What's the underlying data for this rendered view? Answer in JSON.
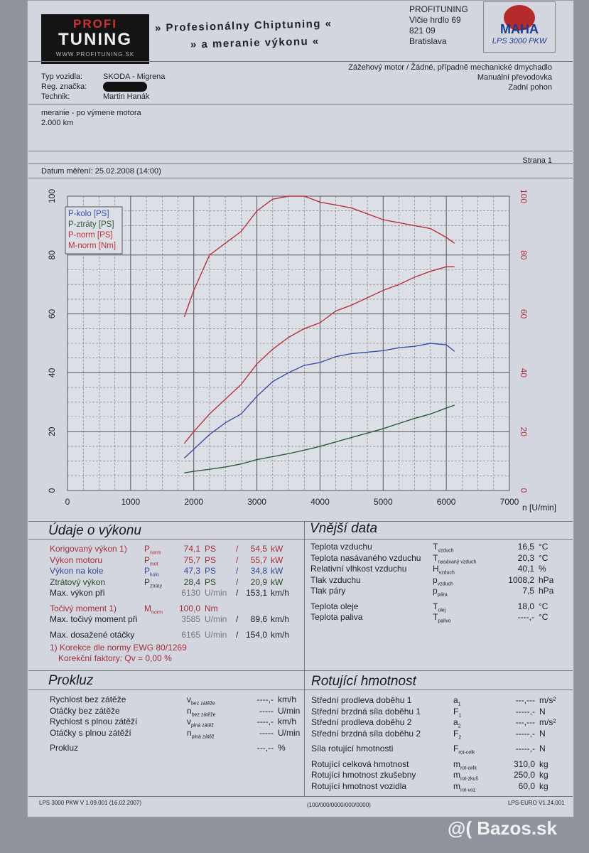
{
  "header": {
    "logo_text": "PROFI TUNING",
    "logo_url": "WWW.PROFITUNING.SK",
    "slogan1": "» Profesionálny Chiptuning «",
    "slogan2": "» a meranie výkonu «",
    "company": [
      "PROFITUNING",
      "Vlčie hrdlo 69",
      "821 09",
      "Bratislava"
    ],
    "maha_logo": "MAHA",
    "maha_model": "LPS 3000 PKW"
  },
  "vehicle": {
    "type_label": "Typ vozidla:",
    "type_value": "SKODA - Migrena",
    "reg_label": "Reg. značka:",
    "tech_label": "Technik:",
    "tech_value": "Martin Hanák",
    "engine": "Zážehový motor / Žádné, případně mechanické dmychadlo",
    "gearbox": "Manuální převodovka",
    "drive": "Zadní pohon"
  },
  "note": [
    "meranie - po výmene motora",
    "2.000 km"
  ],
  "page": "Strana 1",
  "date": "Datum měření: 25.02.2008 (14:00)",
  "chart_data": {
    "type": "line",
    "xlabel": "n [U/min]",
    "xlim": [
      0,
      7000
    ],
    "ylim": [
      0,
      100
    ],
    "y2lim": [
      0,
      100
    ],
    "xticks": [
      "0",
      "1000",
      "2000",
      "3000",
      "4000",
      "5000",
      "6000",
      "7000"
    ],
    "yticks": [
      "0",
      "20",
      "40",
      "60",
      "80",
      "100"
    ],
    "y2ticks": [
      "0",
      "20",
      "40",
      "60",
      "80",
      "100"
    ],
    "legend": "top-left",
    "grid": true,
    "x": [
      1850,
      2000,
      2250,
      2500,
      2750,
      3000,
      3250,
      3500,
      3750,
      4000,
      4250,
      4500,
      4750,
      5000,
      5250,
      5500,
      5750,
      6000,
      6130
    ],
    "series": [
      {
        "name": "P-kolo [PS]",
        "axis": "left",
        "color": "#3a4fa8",
        "values": [
          11,
          14,
          19,
          23,
          26,
          32,
          37,
          40,
          42.5,
          43.5,
          45.5,
          46.5,
          47,
          47.5,
          48.5,
          49,
          50,
          49.5,
          47.3
        ]
      },
      {
        "name": "P-ztráty [PS]",
        "axis": "left",
        "color": "#2e5a3a",
        "values": [
          6,
          6.5,
          7.2,
          8,
          9,
          10.5,
          11.5,
          12.5,
          13.7,
          15,
          16.5,
          18,
          19.5,
          21,
          22.8,
          24.5,
          26,
          28,
          29
        ]
      },
      {
        "name": "P-norm [PS]",
        "axis": "left",
        "color": "#b8323a",
        "values": [
          16,
          20,
          26,
          31,
          36,
          43,
          48,
          52,
          55,
          57,
          61,
          63,
          65.5,
          68,
          70,
          72.5,
          74.5,
          76,
          76
        ]
      },
      {
        "name": "M-norm [Nm]",
        "axis": "right",
        "color": "#b8323a",
        "values": [
          59,
          68,
          80,
          84,
          88,
          95,
          99,
          100,
          100,
          98,
          97,
          96,
          94,
          92,
          91,
          90,
          89,
          86,
          84
        ]
      }
    ]
  },
  "performance": {
    "title": "Údaje o výkonu",
    "rows": [
      {
        "label": "Korigovaný výkon 1)",
        "sym": "P",
        "sub": "norm",
        "v1": "74,1",
        "u1": "PS",
        "v2": "54,5",
        "u2": "kW",
        "cls": "red"
      },
      {
        "label": "Výkon motoru",
        "sym": "P",
        "sub": "mot",
        "v1": "75,7",
        "u1": "PS",
        "v2": "55,7",
        "u2": "kW",
        "cls": "red"
      },
      {
        "label": "Výkon na kole",
        "sym": "P",
        "sub": "kolo",
        "v1": "47,3",
        "u1": "PS",
        "v2": "34,8",
        "u2": "kW",
        "cls": "blue"
      },
      {
        "label": "Ztrátový výkon",
        "sym": "P",
        "sub": "ztráty",
        "v1": "28,4",
        "u1": "PS",
        "v2": "20,9",
        "u2": "kW",
        "cls": "green"
      },
      {
        "label": "Max. výkon při",
        "sym": "",
        "sub": "",
        "v1": "6130",
        "u1": "U/min",
        "v2": "153,1",
        "u2": "km/h",
        "cls": ""
      },
      {
        "label": "Točivý moment 1)",
        "sym": "M",
        "sub": "norm",
        "v1": "100,0",
        "u1": "Nm",
        "v2": "",
        "u2": "",
        "cls": "red"
      },
      {
        "label": "Max. točivý moment při",
        "sym": "",
        "sub": "",
        "v1": "3585",
        "u1": "U/min",
        "v2": "89,6",
        "u2": "km/h",
        "cls": ""
      },
      {
        "label": "Max. dosažené otáčky",
        "sym": "",
        "sub": "",
        "v1": "6165",
        "u1": "U/min",
        "v2": "154,0",
        "u2": "km/h",
        "cls": ""
      }
    ],
    "footnote1": "1) Korekce dle normy EWG 80/1269",
    "footnote2": "Korekční faktory: Qv =   0,00 %"
  },
  "external": {
    "title": "Vnější data",
    "rows": [
      {
        "label": "Teplota vzduchu",
        "sym": "T",
        "sub": "vzduch",
        "v": "16,5",
        "u": "°C"
      },
      {
        "label": "Teplota nasávaného vzduchu",
        "sym": "T",
        "sub": "nasávaný vzduch",
        "v": "20,3",
        "u": "°C"
      },
      {
        "label": "Relativní vlhkost vzduchu",
        "sym": "H",
        "sub": "vzduch",
        "v": "40,1",
        "u": "%"
      },
      {
        "label": "Tlak vzduchu",
        "sym": "p",
        "sub": "vzduch",
        "v": "1008,2",
        "u": "hPa"
      },
      {
        "label": "Tlak páry",
        "sym": "p",
        "sub": "pára",
        "v": "7,5",
        "u": "hPa"
      },
      {
        "label": "Teplota oleje",
        "sym": "T",
        "sub": "olej",
        "v": "18,0",
        "u": "°C"
      },
      {
        "label": "Teplota paliva",
        "sym": "T",
        "sub": "palivo",
        "v": "----,-",
        "u": "°C"
      }
    ]
  },
  "slip": {
    "title": "Prokluz",
    "rows": [
      {
        "label": "Rychlost bez zátěže",
        "sym": "v",
        "sub": "bez zátěže",
        "v": "----,-",
        "u": "km/h"
      },
      {
        "label": "Otáčky bez zátěže",
        "sym": "n",
        "sub": "bez zátěže",
        "v": "-----",
        "u": "U/min"
      },
      {
        "label": "Rychlost s plnou zátěží",
        "sym": "v",
        "sub": "plná zátěž",
        "v": "----,-",
        "u": "km/h"
      },
      {
        "label": "Otáčky s plnou zátěží",
        "sym": "n",
        "sub": "plná zátěž",
        "v": "-----",
        "u": "U/min"
      },
      {
        "label": "Prokluz",
        "sym": "",
        "sub": "",
        "v": "---,--",
        "u": "%"
      }
    ]
  },
  "rotating": {
    "title": "Rotující hmotnost",
    "rows": [
      {
        "label": "Střední prodleva doběhu 1",
        "sym": "a",
        "sub": "1",
        "v": "---,---",
        "u": "m/s²"
      },
      {
        "label": "Střední brzdná síla doběhu 1",
        "sym": "F",
        "sub": "1",
        "v": "-----,-",
        "u": "N"
      },
      {
        "label": "Střední prodleva doběhu 2",
        "sym": "a",
        "sub": "2",
        "v": "---,---",
        "u": "m/s²"
      },
      {
        "label": "Střední brzdná síla doběhu 2",
        "sym": "F",
        "sub": "2",
        "v": "-----,-",
        "u": "N"
      },
      {
        "label": "Síla rotující hmotnosti",
        "sym": "F",
        "sub": "rot-celk",
        "v": "-----,-",
        "u": "N"
      },
      {
        "label": "Rotující celková hmotnost",
        "sym": "m",
        "sub": "rot-celk",
        "v": "310,0",
        "u": "kg"
      },
      {
        "label": "Rotující hmotnost zkušebny",
        "sym": "m",
        "sub": "rot-zkuš",
        "v": "250,0",
        "u": "kg"
      },
      {
        "label": "Rotující hmotnost vozidla",
        "sym": "m",
        "sub": "rot-voz",
        "v": "60,0",
        "u": "kg"
      }
    ]
  },
  "footer": {
    "left": "LPS 3000 PKW V 1.09.001 (16.02.2007)",
    "center": "(100/000/0000/000/0000)",
    "right": "LPS-EURO V1.24.001"
  },
  "watermark": "@( Bazos.sk"
}
